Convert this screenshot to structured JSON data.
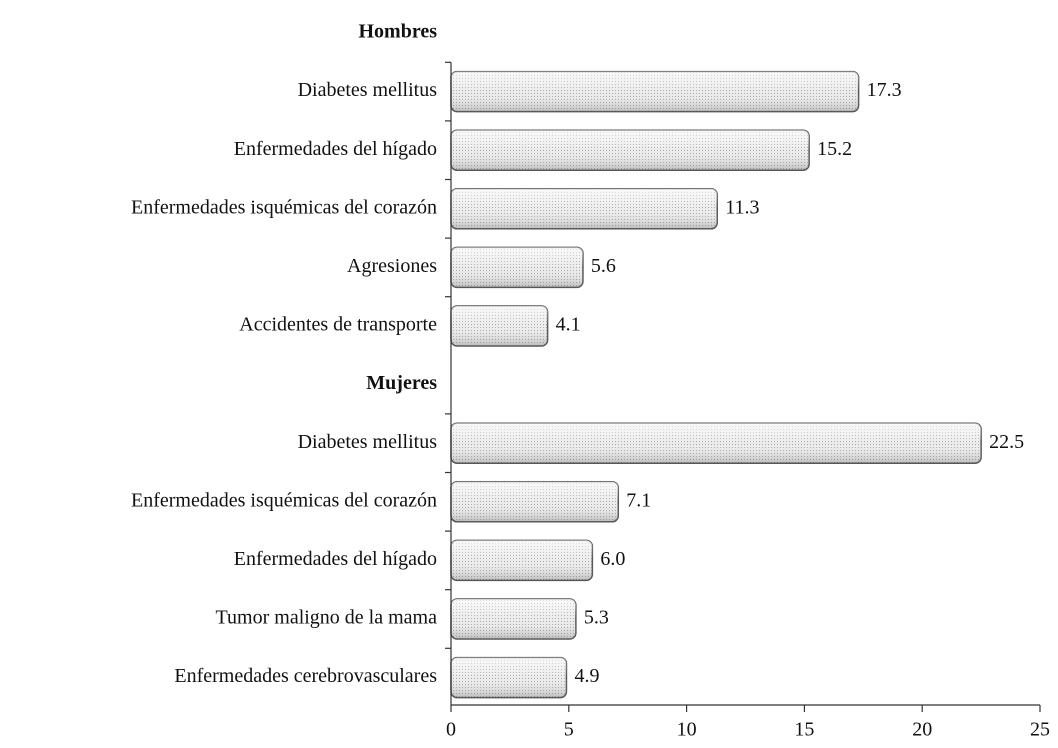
{
  "chart_data": {
    "type": "bar",
    "orientation": "horizontal",
    "color": "#d9d9d9",
    "groups": [
      {
        "name": "Hombres",
        "categories": [
          "Diabetes mellitus",
          "Enfermedades del hígado",
          "Enfermedades isquémicas del corazón",
          "Agresiones",
          "Accidentes de transporte"
        ],
        "values": [
          17.3,
          15.2,
          11.3,
          5.6,
          4.1
        ],
        "value_labels": [
          "17.3",
          "15.2",
          "11.3",
          "5.6",
          "4.1"
        ]
      },
      {
        "name": "Mujeres",
        "categories": [
          "Diabetes mellitus",
          "Enfermedades isquémicas del corazón",
          "Enfermedades del hígado",
          "Tumor maligno de la mama",
          "Enfermedades cerebrovasculares"
        ],
        "values": [
          22.5,
          7.1,
          6.0,
          5.3,
          4.9
        ],
        "value_labels": [
          "22.5",
          "7.1",
          "6.0",
          "5.3",
          "4.9"
        ]
      }
    ],
    "xlim": [
      0,
      25
    ],
    "xticks": [
      0,
      5,
      10,
      15,
      20,
      25
    ]
  }
}
